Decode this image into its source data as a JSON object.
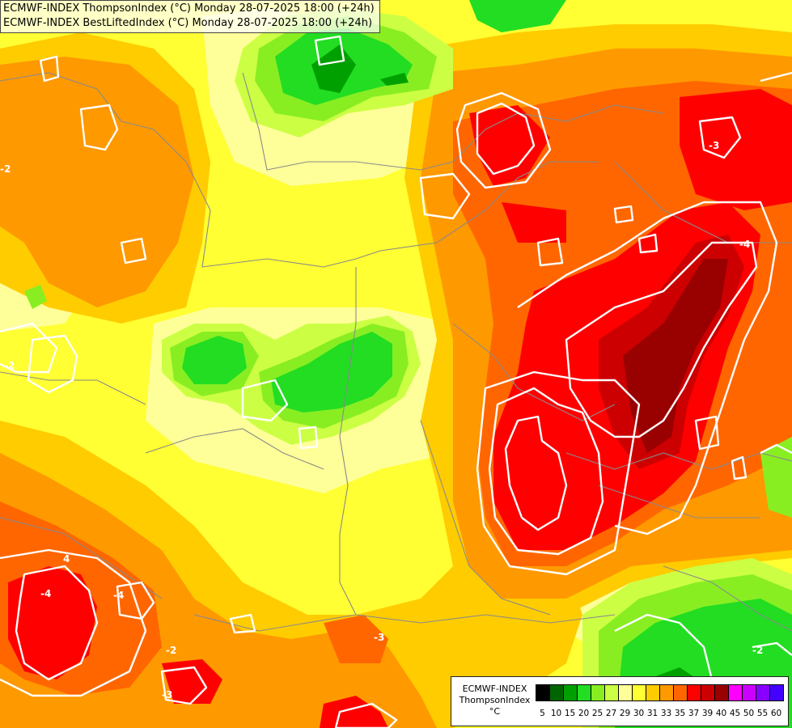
{
  "titles": [
    "ECMWF-INDEX ThompsonIndex (°C) Monday 28-07-2025 18:00 (+24h)",
    "ECMWF-INDEX BestLiftedIndex (°C) Monday 28-07-2025 18:00 (+24h)"
  ],
  "legend": {
    "model": "ECMWF-INDEX",
    "parameter": "ThompsonIndex",
    "unit": "°C",
    "colors": [
      "#000000",
      "#000000",
      "#000000",
      "#000000",
      "#006400",
      "#00a000",
      "#22dd22",
      "#88ee22",
      "#ccff44",
      "#ffff99",
      "#ffff33",
      "#ffcc00",
      "#ff9900",
      "#ff6600",
      "#ff0000",
      "#cc0000",
      "#990000",
      "#ff00ff",
      "#cc00ff",
      "#8800ff",
      "#4400ff",
      "#0000ff"
    ],
    "ticks": [
      "5",
      "10",
      "15",
      "20",
      "25",
      "27",
      "29",
      "30",
      "31",
      "33",
      "35",
      "37",
      "39",
      "40",
      "45",
      "50",
      "55",
      "60"
    ]
  },
  "contour_labels": [
    "-3",
    "-2",
    "-4",
    "-4",
    "4",
    "-3",
    "-2",
    "-2",
    "-3",
    "-4",
    "-2"
  ]
}
